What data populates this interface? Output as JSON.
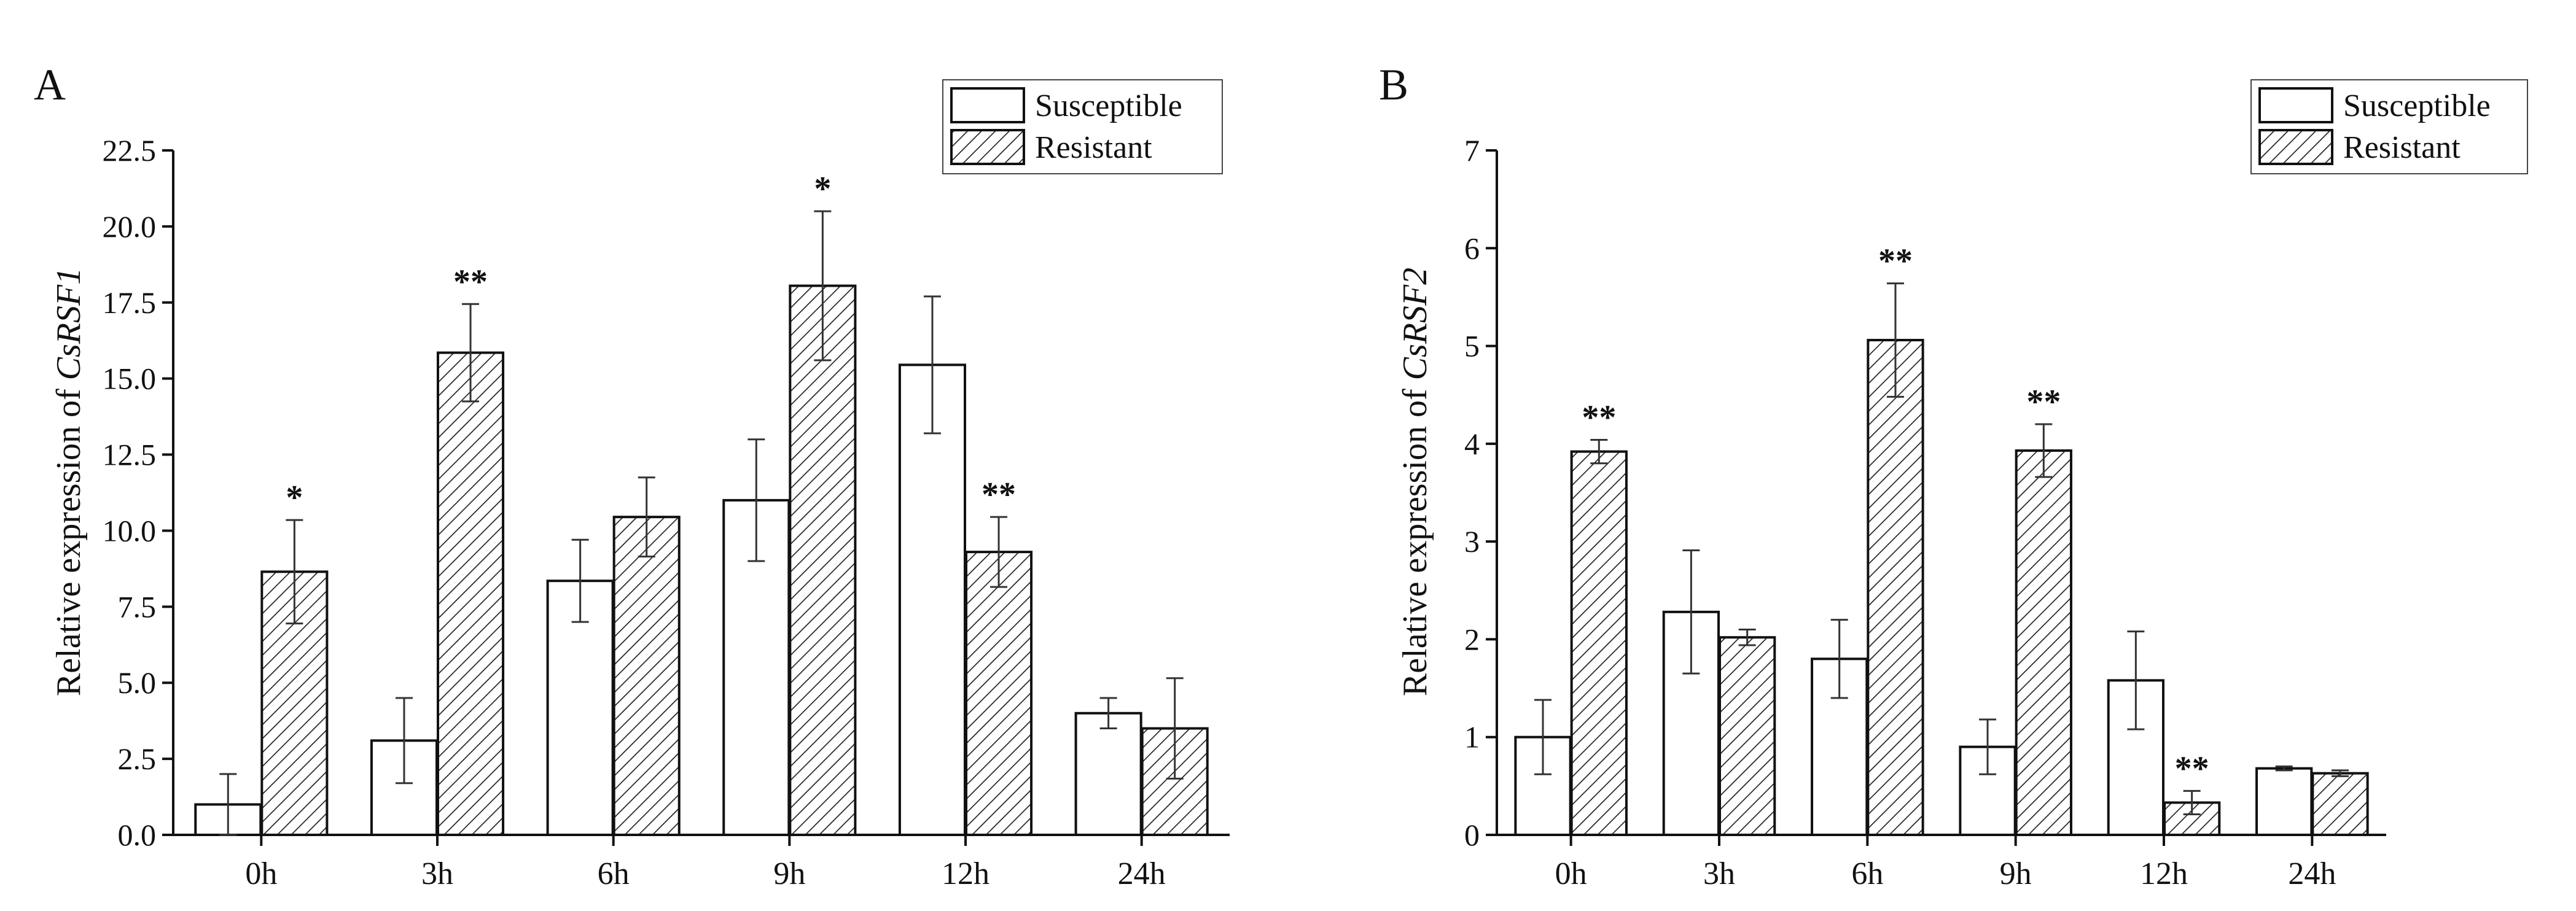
{
  "chart_data": [
    {
      "panel_label": "A",
      "type": "bar",
      "ylabel_prefix": "Relative expression of ",
      "ylabel_gene": "CsRSF1",
      "xlabel": "",
      "categories": [
        "0h",
        "3h",
        "6h",
        "9h",
        "12h",
        "24h"
      ],
      "ylim": [
        0,
        22.5
      ],
      "yticks": [
        "0.0",
        "2.5",
        "5.0",
        "7.5",
        "10.0",
        "12.5",
        "15.0",
        "17.5",
        "20.0",
        "22.5"
      ],
      "series": [
        {
          "name": "Susceptible",
          "values": [
            1.0,
            3.1,
            8.35,
            11.0,
            15.45,
            4.0
          ],
          "errors": [
            1.0,
            1.4,
            1.35,
            2.0,
            2.25,
            0.5
          ]
        },
        {
          "name": "Resistant",
          "values": [
            8.65,
            15.85,
            10.45,
            18.05,
            9.3,
            3.5
          ],
          "errors": [
            1.7,
            1.6,
            1.3,
            2.45,
            1.15,
            1.65
          ]
        }
      ],
      "significance": [
        "*",
        "**",
        "",
        "*",
        "**",
        ""
      ],
      "legend": [
        "Susceptible",
        "Resistant"
      ],
      "legend_position": "top-right"
    },
    {
      "panel_label": "B",
      "type": "bar",
      "ylabel_prefix": "Relative expression of ",
      "ylabel_gene": "CsRSF2",
      "xlabel": "",
      "categories": [
        "0h",
        "3h",
        "6h",
        "9h",
        "12h",
        "24h"
      ],
      "ylim": [
        0,
        7
      ],
      "yticks": [
        "0",
        "1",
        "2",
        "3",
        "4",
        "5",
        "6",
        "7"
      ],
      "series": [
        {
          "name": "Susceptible",
          "values": [
            1.0,
            2.28,
            1.8,
            0.9,
            1.58,
            0.68
          ],
          "errors": [
            0.38,
            0.63,
            0.4,
            0.28,
            0.5,
            0.02
          ]
        },
        {
          "name": "Resistant",
          "values": [
            3.92,
            2.02,
            5.06,
            3.93,
            0.33,
            0.63
          ],
          "errors": [
            0.12,
            0.08,
            0.58,
            0.27,
            0.12,
            0.03
          ]
        }
      ],
      "significance": [
        "**",
        "",
        "**",
        "**",
        "**",
        ""
      ],
      "legend": [
        "Susceptible",
        "Resistant"
      ],
      "legend_position": "top-right"
    }
  ]
}
